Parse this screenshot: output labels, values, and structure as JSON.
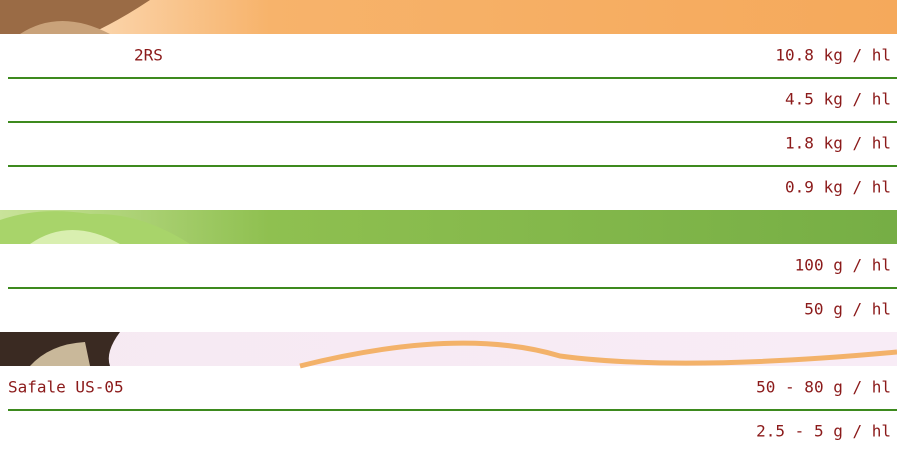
{
  "sections": [
    {
      "rows": [
        {
          "name": "2RS",
          "amount": "10.8 kg / hl"
        },
        {
          "amount": "4.5 kg / hl"
        },
        {
          "amount": "1.8 kg / hl"
        },
        {
          "amount": "0.9 kg / hl"
        }
      ]
    },
    {
      "rows": [
        {
          "amount": "100 g / hl"
        },
        {
          "amount": "50 g / hl"
        }
      ]
    },
    {
      "rows": [
        {
          "name": "Safale US-05",
          "amount": "50 - 80 g / hl"
        },
        {
          "amount": "2.5 - 5 g / hl"
        }
      ]
    }
  ]
}
